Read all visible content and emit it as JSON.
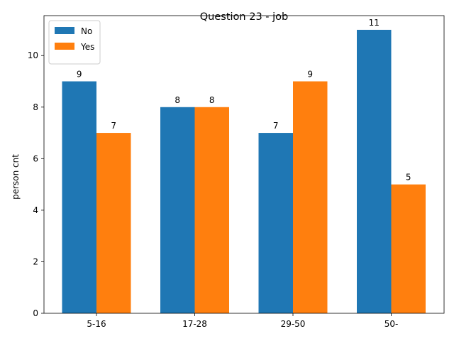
{
  "chart_data": {
    "type": "bar",
    "title": "Question 23 - job",
    "xlabel": "",
    "ylabel": "person cnt",
    "categories": [
      "5-16",
      "17-28",
      "29-50",
      "50-"
    ],
    "series": [
      {
        "name": "No",
        "values": [
          9,
          8,
          7,
          11
        ],
        "color": "#1f77b4"
      },
      {
        "name": "Yes",
        "values": [
          7,
          8,
          9,
          5
        ],
        "color": "#ff7f0e"
      }
    ],
    "ylim": [
      0,
      11.55
    ],
    "yticks": [
      "0",
      "2",
      "4",
      "6",
      "8",
      "10"
    ],
    "legend_position": "top-left",
    "grid": false
  }
}
